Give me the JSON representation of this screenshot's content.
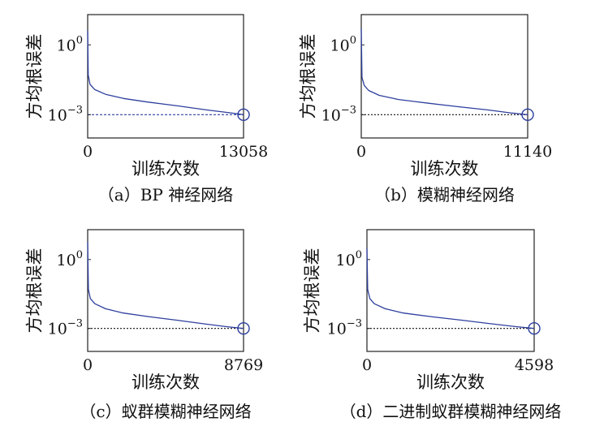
{
  "colors": {
    "curve": "#2e3f9e",
    "marker": "#2e3f9e",
    "axes": "#222222"
  },
  "chart_data": [
    {
      "type": "line",
      "caption": "（a）BP 神经网络",
      "xlabel": "训练次数",
      "ylabel": "方均根误差",
      "xticks": [
        "0",
        "13058"
      ],
      "yticks": [
        "10^0",
        "10^-3"
      ],
      "xlim": [
        0,
        13058
      ],
      "yscale": "log",
      "ylim": [
        0.0001,
        20
      ],
      "goal": 0.001,
      "goal_line": "dashed",
      "series": [
        {
          "x": [
            0,
            50,
            200,
            600,
            1500,
            3000,
            5000,
            7500,
            10000,
            12000,
            13058
          ],
          "y": [
            4,
            0.05,
            0.02,
            0.012,
            0.0075,
            0.005,
            0.0035,
            0.0024,
            0.0016,
            0.0012,
            0.001
          ]
        }
      ],
      "end_marker": [
        13058,
        0.001
      ]
    },
    {
      "type": "line",
      "caption": "（b）模糊神经网络",
      "xlabel": "训练次数",
      "ylabel": "方均根误差",
      "xticks": [
        "0",
        "11140"
      ],
      "yticks": [
        "10^0",
        "10^-3"
      ],
      "xlim": [
        0,
        11140
      ],
      "yscale": "log",
      "ylim": [
        0.0001,
        20
      ],
      "goal": 0.001,
      "goal_line": "dotted",
      "series": [
        {
          "x": [
            0,
            50,
            200,
            500,
            1200,
            2500,
            4500,
            6500,
            8500,
            10000,
            11140
          ],
          "y": [
            5,
            0.04,
            0.018,
            0.011,
            0.0068,
            0.0045,
            0.0031,
            0.0022,
            0.0016,
            0.0012,
            0.001
          ]
        }
      ],
      "end_marker": [
        11140,
        0.001
      ]
    },
    {
      "type": "line",
      "caption": "（c）蚁群模糊神经网络",
      "xlabel": "训练次数",
      "ylabel": "方均根误差",
      "xticks": [
        "0",
        "8769"
      ],
      "yticks": [
        "10^0",
        "10^-3"
      ],
      "xlim": [
        0,
        8769
      ],
      "yscale": "log",
      "ylim": [
        0.0001,
        20
      ],
      "goal": 0.001,
      "goal_line": "dotted",
      "series": [
        {
          "x": [
            0,
            40,
            150,
            400,
            1000,
            2000,
            3500,
            5000,
            6500,
            7800,
            8769
          ],
          "y": [
            6,
            0.05,
            0.02,
            0.012,
            0.0072,
            0.0047,
            0.0032,
            0.0023,
            0.0016,
            0.0012,
            0.001
          ]
        }
      ],
      "end_marker": [
        8769,
        0.001
      ]
    },
    {
      "type": "line",
      "caption": "（d）二进制蚁群模糊神经网络",
      "xlabel": "训练次数",
      "ylabel": "方均根误差",
      "xticks": [
        "0",
        "4598"
      ],
      "yticks": [
        "10^0",
        "10^-3"
      ],
      "xlim": [
        0,
        4598
      ],
      "yscale": "log",
      "ylim": [
        0.0001,
        20
      ],
      "goal": 0.001,
      "goal_line": "dotted",
      "series": [
        {
          "x": [
            0,
            20,
            80,
            200,
            500,
            1000,
            1800,
            2600,
            3400,
            4100,
            4598
          ],
          "y": [
            3,
            0.05,
            0.02,
            0.012,
            0.0072,
            0.0047,
            0.0032,
            0.0023,
            0.0016,
            0.0012,
            0.001
          ]
        }
      ],
      "end_marker": [
        4598,
        0.001
      ]
    }
  ]
}
